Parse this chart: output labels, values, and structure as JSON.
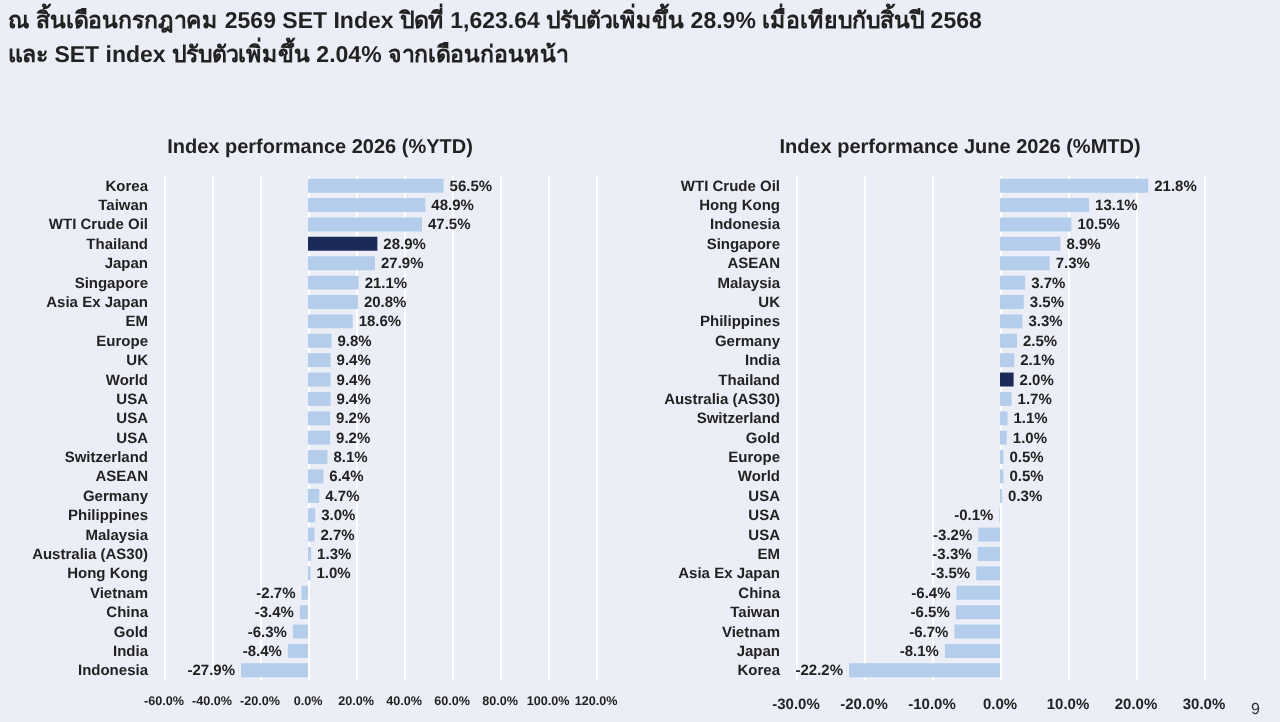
{
  "chart_data": [
    {
      "type": "bar",
      "orientation": "horizontal",
      "title": "Index performance 2026 (%YTD)",
      "annotations": [
        "ณ สิ้นเดือนกรกฎาคม 2569 SET Index ปิดที่ 1,623.64 ปรับตัวเพิ่มขึ้น 28.9% เมื่อเทียบกับสิ้นปี 2568",
        "และ SET index ปรับตัวเพิ่มขึ้น 2.04% จากเดือนก่อนหน้า"
      ],
      "categories": [
        "Korea",
        "Taiwan",
        "WTI Crude Oil",
        "Thailand",
        "Japan",
        "Singapore",
        "Asia Ex Japan",
        "EM",
        "Europe",
        "UK",
        "World",
        "USA",
        "USA",
        "USA",
        "Switzerland",
        "ASEAN",
        "Germany",
        "Philippines",
        "Malaysia",
        "Australia (AS30)",
        "Hong Kong",
        "Vietnam",
        "China",
        "Gold",
        "India",
        "Indonesia"
      ],
      "values": [
        56.5,
        48.9,
        47.5,
        28.9,
        27.9,
        21.1,
        20.8,
        18.6,
        9.8,
        9.4,
        9.4,
        9.4,
        9.2,
        9.2,
        8.1,
        6.4,
        4.7,
        3.0,
        2.7,
        1.3,
        1.0,
        -2.7,
        -3.4,
        -6.3,
        -8.4,
        -27.9
      ],
      "value_labels": [
        "56.5%",
        "48.9%",
        "47.5%",
        "28.9%",
        "27.9%",
        "21.1%",
        "20.8%",
        "18.6%",
        "9.8%",
        "9.4%",
        "9.4%",
        "9.4%",
        "9.2%",
        "9.2%",
        "8.1%",
        "6.4%",
        "4.7%",
        "3.0%",
        "2.7%",
        "1.3%",
        "1.0%",
        "-2.7%",
        "-3.4%",
        "-6.3%",
        "-8.4%",
        "-27.9%"
      ],
      "colors": [
        "#b4cdeb",
        "#b4cdeb",
        "#b4cdeb",
        "#1c2a5a",
        "#b4cdeb",
        "#b4cdeb",
        "#b4cdeb",
        "#b4cdeb",
        "#b4cdeb",
        "#b4cdeb",
        "#b4cdeb",
        "#b4cdeb",
        "#b4cdeb",
        "#b4cdeb",
        "#b4cdeb",
        "#b4cdeb",
        "#b4cdeb",
        "#b4cdeb",
        "#b4cdeb",
        "#b4cdeb",
        "#b4cdeb",
        "#b4cdeb",
        "#b4cdeb",
        "#b4cdeb",
        "#b4cdeb",
        "#b4cdeb"
      ],
      "xlim": [
        -60,
        120
      ],
      "xticks": [
        {
          "value": -60,
          "label": "-60.0%"
        },
        {
          "value": -40,
          "label": "-40.0%"
        },
        {
          "value": -20,
          "label": "-20.0%"
        },
        {
          "value": 0,
          "label": "0.0%"
        },
        {
          "value": 20,
          "label": "20.0%"
        },
        {
          "value": 40,
          "label": "40.0%"
        },
        {
          "value": 60,
          "label": "60.0%"
        },
        {
          "value": 80,
          "label": "80.0%"
        },
        {
          "value": 100,
          "label": "100.0%"
        },
        {
          "value": 120,
          "label": "120.0%"
        }
      ],
      "grid": "x"
    },
    {
      "type": "bar",
      "orientation": "horizontal",
      "title": "Index performance June 2026 (%MTD)",
      "annotations": [
        "9"
      ],
      "categories": [
        "WTI Crude Oil",
        "Hong Kong",
        "Indonesia",
        "Singapore",
        "ASEAN",
        "Malaysia",
        "UK",
        "Philippines",
        "Germany",
        "India",
        "Thailand",
        "Australia (AS30)",
        "Switzerland",
        "Gold",
        "Europe",
        "World",
        "USA",
        "USA",
        "USA",
        "EM",
        "Asia Ex Japan",
        "China",
        "Taiwan",
        "Vietnam",
        "Japan",
        "Korea"
      ],
      "values": [
        21.8,
        13.1,
        10.5,
        8.9,
        7.3,
        3.7,
        3.5,
        3.3,
        2.5,
        2.1,
        2.0,
        1.7,
        1.1,
        1.0,
        0.5,
        0.5,
        0.3,
        -0.1,
        -3.2,
        -3.3,
        -3.5,
        -6.4,
        -6.5,
        -6.7,
        -8.1,
        -22.2
      ],
      "value_labels": [
        "21.8%",
        "13.1%",
        "10.5%",
        "8.9%",
        "7.3%",
        "3.7%",
        "3.5%",
        "3.3%",
        "2.5%",
        "2.1%",
        "2.0%",
        "1.7%",
        "1.1%",
        "1.0%",
        "0.5%",
        "0.5%",
        "0.3%",
        "-0.1%",
        "-3.2%",
        "-3.3%",
        "-3.5%",
        "-6.4%",
        "-6.5%",
        "-6.7%",
        "-8.1%",
        "-22.2%"
      ],
      "colors": [
        "#b4cdeb",
        "#b4cdeb",
        "#b4cdeb",
        "#b4cdeb",
        "#b4cdeb",
        "#b4cdeb",
        "#b4cdeb",
        "#b4cdeb",
        "#b4cdeb",
        "#b4cdeb",
        "#1c2a5a",
        "#b4cdeb",
        "#b4cdeb",
        "#b4cdeb",
        "#b4cdeb",
        "#b4cdeb",
        "#b4cdeb",
        "#b4cdeb",
        "#b4cdeb",
        "#b4cdeb",
        "#b4cdeb",
        "#b4cdeb",
        "#b4cdeb",
        "#b4cdeb",
        "#b4cdeb",
        "#b4cdeb"
      ],
      "xlim": [
        -30,
        30
      ],
      "xticks": [
        {
          "value": -30,
          "label": "-30.0%"
        },
        {
          "value": -20,
          "label": "-20.0%"
        },
        {
          "value": -10,
          "label": "-10.0%"
        },
        {
          "value": 0,
          "label": "0.0%"
        },
        {
          "value": 10,
          "label": "10.0%"
        },
        {
          "value": 20,
          "label": "20.0%"
        },
        {
          "value": 30,
          "label": "30.0%"
        }
      ],
      "grid": "x"
    }
  ]
}
